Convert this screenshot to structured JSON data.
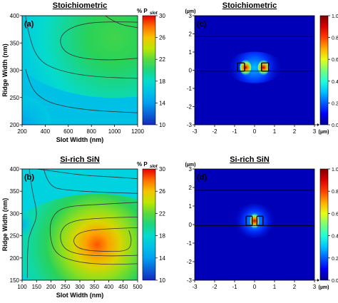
{
  "chart_data": [
    {
      "type": "heatmap",
      "panel": "(a)",
      "title": "Stoichiometric",
      "xlabel": "Slot Width (nm)",
      "ylabel": "Ridge Width (nm)",
      "xlim": [
        200,
        1200
      ],
      "ylim": [
        200,
        400
      ],
      "xticks": [
        "200",
        "400",
        "600",
        "800",
        "1000",
        "1200"
      ],
      "yticks": [
        "200",
        "250",
        "300",
        "350",
        "400"
      ],
      "colorbar": {
        "label": "% P",
        "label_sub": "slot",
        "range": [
          10,
          30
        ],
        "ticks": [
          "10",
          "14",
          "18",
          "22",
          "26",
          "30"
        ]
      },
      "peak": {
        "x": 1000,
        "y": 360,
        "value": 21
      },
      "contours": [
        {
          "level": 20,
          "points": [
            [
              1200,
              388
            ],
            [
              900,
              390
            ],
            [
              650,
              382
            ],
            [
              520,
              362
            ],
            [
              550,
              335
            ],
            [
              700,
              322
            ],
            [
              950,
              318
            ],
            [
              1200,
              322
            ]
          ]
        },
        {
          "level": 18,
          "points": [
            [
              230,
              400
            ],
            [
              250,
              370
            ],
            [
              330,
              320
            ],
            [
              500,
              300
            ],
            [
              800,
              288
            ],
            [
              1200,
              285
            ]
          ]
        },
        {
          "level": 16,
          "points": [
            [
              230,
              302
            ],
            [
              270,
              272
            ],
            [
              350,
              250
            ],
            [
              500,
              236
            ],
            [
              800,
              226
            ],
            [
              1200,
              222
            ]
          ]
        },
        {
          "level": 22,
          "points": [
            [
              920,
              400
            ],
            [
              1020,
              385
            ],
            [
              1200,
              378
            ]
          ]
        }
      ]
    },
    {
      "type": "heatmap",
      "panel": "(b)",
      "title": "Si-rich SiN",
      "xlabel": "Slot Width (nm)",
      "ylabel": "Ridge Width (nm)",
      "xlim": [
        100,
        500
      ],
      "ylim": [
        150,
        400
      ],
      "xticks": [
        "100",
        "150",
        "200",
        "250",
        "300",
        "350",
        "400",
        "450",
        "500"
      ],
      "yticks": [
        "150",
        "200",
        "250",
        "300",
        "350",
        "400"
      ],
      "colorbar": {
        "label": "% P",
        "label_sub": "slot",
        "range": [
          10,
          30
        ],
        "ticks": [
          "10",
          "14",
          "18",
          "22",
          "26",
          "30"
        ]
      },
      "peak": {
        "x": 360,
        "y": 230,
        "value": 28
      },
      "contours": [
        {
          "level": 18,
          "points": [
            [
              150,
              400
            ],
            [
              200,
              396
            ],
            [
              260,
              390
            ],
            [
              330,
              385
            ],
            [
              420,
              382
            ],
            [
              500,
              378
            ]
          ]
        },
        {
          "level": 20,
          "points": [
            [
              175,
              400
            ],
            [
              190,
              360
            ],
            [
              260,
              352
            ],
            [
              360,
              348
            ],
            [
              500,
              345
            ]
          ]
        },
        {
          "level": 22,
          "points": [
            [
              500,
              325
            ],
            [
              350,
              320
            ],
            [
              240,
              315
            ],
            [
              200,
              290
            ],
            [
              195,
              250
            ],
            [
              215,
              208
            ],
            [
              290,
              190
            ],
            [
              400,
              185
            ],
            [
              500,
              187
            ]
          ]
        },
        {
          "level": 24,
          "points": [
            [
              500,
              292
            ],
            [
              360,
              290
            ],
            [
              260,
              282
            ],
            [
              228,
              255
            ],
            [
              242,
              220
            ],
            [
              300,
              207
            ],
            [
              400,
              204
            ],
            [
              500,
              206
            ]
          ]
        },
        {
          "level": 26,
          "points": [
            [
              500,
              268
            ],
            [
              400,
              266
            ],
            [
              300,
              260
            ],
            [
              272,
              238
            ],
            [
              300,
              218
            ],
            [
              400,
              214
            ],
            [
              470,
              216
            ],
            [
              480,
              240
            ],
            [
              470,
              262
            ]
          ]
        },
        {
          "level": 16,
          "points": [
            [
              118,
              155
            ],
            [
              118,
              230
            ],
            [
              130,
              260
            ],
            [
              155,
              295
            ],
            [
              135,
              350
            ],
            [
              125,
              400
            ]
          ]
        }
      ]
    },
    {
      "type": "heatmap",
      "panel": "(c)",
      "title": "Stoichiometric",
      "xlabel": "(µm)",
      "ylabel": "(µm)",
      "xlim": [
        -3,
        3
      ],
      "ylim": [
        -3,
        3
      ],
      "xticks": [
        "-3",
        "-2",
        "-1",
        "0",
        "1",
        "2",
        "3"
      ],
      "yticks": [
        "-3",
        "-2",
        "-1",
        "0",
        "1",
        "2",
        "3"
      ],
      "colorbar": {
        "range": [
          0,
          1
        ],
        "ticks": [
          "0.0",
          "0.2",
          "0.4",
          "0.6",
          "0.8",
          "1.0"
        ]
      },
      "hlines": [
        1.85,
        -0.05
      ],
      "rects": [
        [
          -0.85,
          -0.05,
          0.35,
          0.45
        ],
        [
          0.35,
          -0.05,
          0.35,
          0.45
        ]
      ],
      "field_center": {
        "x": 0,
        "y": 0.15
      },
      "hotspots": [
        [
          -0.45,
          0.15
        ],
        [
          0.45,
          0.15
        ]
      ]
    },
    {
      "type": "heatmap",
      "panel": "(d)",
      "title": "Si-rich SiN",
      "xlabel": "(µm)",
      "ylabel": "(µm)",
      "xlim": [
        -3,
        3
      ],
      "ylim": [
        -3,
        3
      ],
      "xticks": [
        "-3",
        "-2",
        "-1",
        "0",
        "1",
        "2",
        "3"
      ],
      "yticks": [
        "-3",
        "-2",
        "-1",
        "0",
        "1",
        "2",
        "3"
      ],
      "colorbar": {
        "range": [
          0,
          1
        ],
        "ticks": [
          "0.0",
          "0.2",
          "0.4",
          "0.6",
          "0.8",
          "1.0"
        ]
      },
      "hlines": [
        1.85,
        -0.05
      ],
      "rects": [
        [
          -0.42,
          -0.05,
          0.3,
          0.5
        ],
        [
          0.12,
          -0.05,
          0.3,
          0.5
        ]
      ],
      "field_center": {
        "x": 0,
        "y": 0.2
      },
      "hotspots": [
        [
          0,
          0.2
        ]
      ]
    }
  ]
}
